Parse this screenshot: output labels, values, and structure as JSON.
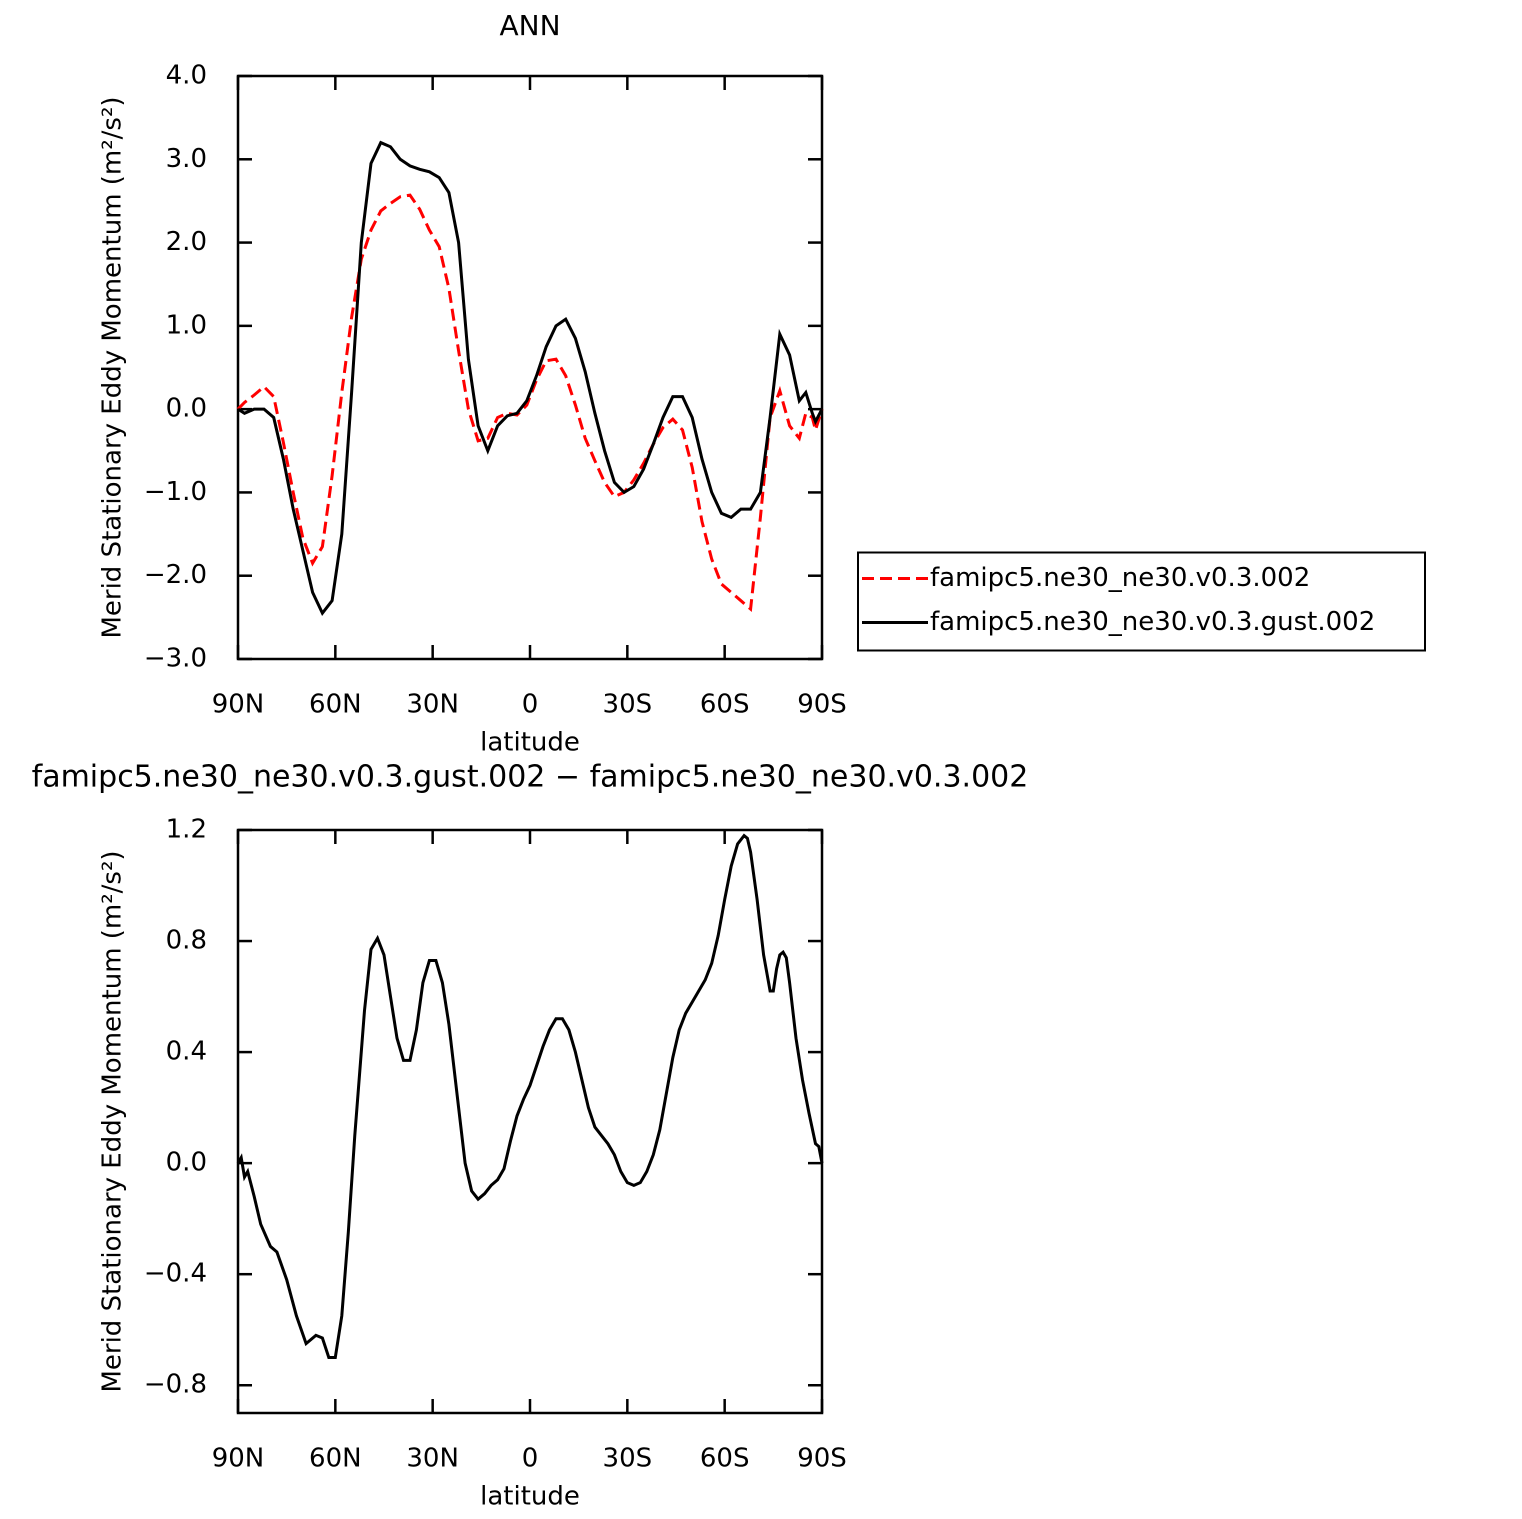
{
  "chart_data": [
    {
      "type": "line",
      "title": "ANN",
      "ylabel": "Merid Stationary Eddy Momentum (m²/s²)",
      "xlabel": "latitude",
      "xlim": [
        90,
        -90
      ],
      "xticks": [
        {
          "value": 90,
          "label": "90N"
        },
        {
          "value": 60,
          "label": "60N"
        },
        {
          "value": 30,
          "label": "30N"
        },
        0,
        {
          "value": -30,
          "label": "30S"
        },
        {
          "value": -60,
          "label": "60S"
        },
        {
          "value": -90,
          "label": "90S"
        }
      ],
      "ylim": [
        -3.0,
        4.0
      ],
      "yticks": [
        {
          "value": 4,
          "label": "4.0"
        },
        {
          "value": 3,
          "label": "3.0"
        },
        {
          "value": 2,
          "label": "2.0"
        },
        {
          "value": 1,
          "label": "1.0"
        },
        {
          "value": 0,
          "label": "0.0"
        },
        {
          "value": -1,
          "label": "−1.0"
        },
        {
          "value": -2,
          "label": "−2.0"
        },
        {
          "value": -3,
          "label": "−3.0"
        }
      ],
      "legend": "right",
      "x": [
        90,
        88,
        85,
        82,
        79,
        76,
        73,
        70,
        67,
        64,
        61,
        58,
        55,
        52,
        49,
        46,
        43,
        40,
        37,
        34,
        31,
        28,
        25,
        22,
        19,
        16,
        13,
        10,
        7,
        4,
        1,
        -2,
        -5,
        -8,
        -11,
        -14,
        -17,
        -20,
        -23,
        -26,
        -29,
        -32,
        -35,
        -38,
        -41,
        -44,
        -47,
        -50,
        -53,
        -56,
        -59,
        -62,
        -65,
        -68,
        -71,
        -74,
        -77,
        -80,
        -83,
        -85,
        -87,
        -88,
        -90
      ],
      "series": [
        {
          "name": "famipc5.ne30_ne30.v0.3.002",
          "color": "#ff0000",
          "style": "dashed",
          "values": [
            0.0,
            0.08,
            0.17,
            0.27,
            0.15,
            -0.4,
            -1.0,
            -1.55,
            -1.85,
            -1.65,
            -0.8,
            0.2,
            1.1,
            1.8,
            2.15,
            2.38,
            2.47,
            2.55,
            2.57,
            2.4,
            2.15,
            1.95,
            1.45,
            0.7,
            0.0,
            -0.38,
            -0.35,
            -0.1,
            -0.05,
            -0.07,
            0.05,
            0.35,
            0.58,
            0.6,
            0.4,
            0.05,
            -0.35,
            -0.62,
            -0.88,
            -1.05,
            -1.0,
            -0.85,
            -0.65,
            -0.42,
            -0.22,
            -0.12,
            -0.25,
            -0.7,
            -1.35,
            -1.8,
            -2.1,
            -2.2,
            -2.3,
            -2.4,
            -1.3,
            -0.1,
            0.22,
            -0.2,
            -0.35,
            -0.05,
            -0.1,
            -0.25,
            0.0
          ]
        },
        {
          "name": "famipc5.ne30_ne30.v0.3.gust.002",
          "color": "#000000",
          "style": "solid",
          "values": [
            0.0,
            -0.05,
            0.0,
            0.0,
            -0.1,
            -0.6,
            -1.2,
            -1.7,
            -2.2,
            -2.45,
            -2.3,
            -1.5,
            0.2,
            2.0,
            2.95,
            3.2,
            3.15,
            3.0,
            2.92,
            2.88,
            2.85,
            2.78,
            2.6,
            2.0,
            0.6,
            -0.2,
            -0.5,
            -0.2,
            -0.08,
            -0.05,
            0.1,
            0.4,
            0.75,
            1.0,
            1.08,
            0.85,
            0.45,
            -0.05,
            -0.5,
            -0.88,
            -1.0,
            -0.93,
            -0.72,
            -0.42,
            -0.1,
            0.15,
            0.15,
            -0.1,
            -0.6,
            -1.0,
            -1.25,
            -1.3,
            -1.2,
            -1.2,
            -1.0,
            -0.1,
            0.9,
            0.65,
            0.1,
            0.2,
            -0.05,
            -0.15,
            0.0
          ]
        }
      ]
    },
    {
      "type": "line",
      "title": "famipc5.ne30_ne30.v0.3.gust.002 − famipc5.ne30_ne30.v0.3.002",
      "ylabel": "Merid Stationary Eddy Momentum (m²/s²)",
      "xlabel": "latitude",
      "xlim": [
        90,
        -90
      ],
      "xticks": [
        {
          "value": 90,
          "label": "90N"
        },
        {
          "value": 60,
          "label": "60N"
        },
        {
          "value": 30,
          "label": "30N"
        },
        0,
        {
          "value": -30,
          "label": "30S"
        },
        {
          "value": -60,
          "label": "60S"
        },
        {
          "value": -90,
          "label": "90S"
        }
      ],
      "ylim": [
        -0.9,
        1.2
      ],
      "yticks": [
        {
          "value": 1.2,
          "label": "1.2"
        },
        {
          "value": 0.8,
          "label": "0.8"
        },
        {
          "value": 0.4,
          "label": "0.4"
        },
        {
          "value": 0,
          "label": "0.0"
        },
        {
          "value": -0.4,
          "label": "−0.4"
        },
        {
          "value": -0.8,
          "label": "−0.8"
        }
      ],
      "color": "#000000",
      "x": [
        90,
        89,
        88,
        87,
        85,
        83,
        80,
        78,
        75,
        72,
        69,
        66,
        64,
        62,
        60,
        58,
        56,
        54,
        51,
        49,
        47,
        45,
        43,
        41,
        39,
        37,
        35,
        33,
        31,
        29,
        27,
        25,
        22,
        20,
        18,
        16,
        14,
        12,
        10,
        8,
        6,
        4,
        2,
        0,
        -2,
        -4,
        -6,
        -8,
        -10,
        -12,
        -14,
        -16,
        -18,
        -20,
        -22,
        -24,
        -26,
        -28,
        -30,
        -32,
        -34,
        -36,
        -38,
        -40,
        -42,
        -44,
        -46,
        -48,
        -50,
        -52,
        -54,
        -56,
        -58,
        -60,
        -62,
        -64,
        -66,
        -67,
        -68,
        -70,
        -72,
        -74,
        -75,
        -76,
        -77,
        -78,
        -79,
        -80,
        -82,
        -84,
        -86,
        -88,
        -89,
        -90
      ],
      "values": [
        0.0,
        0.02,
        -0.05,
        -0.03,
        -0.12,
        -0.22,
        -0.3,
        -0.32,
        -0.42,
        -0.55,
        -0.65,
        -0.62,
        -0.63,
        -0.7,
        -0.7,
        -0.55,
        -0.25,
        0.1,
        0.55,
        0.77,
        0.81,
        0.75,
        0.6,
        0.45,
        0.37,
        0.37,
        0.48,
        0.65,
        0.73,
        0.73,
        0.65,
        0.5,
        0.2,
        0.0,
        -0.1,
        -0.13,
        -0.11,
        -0.08,
        -0.06,
        -0.02,
        0.08,
        0.17,
        0.23,
        0.28,
        0.35,
        0.42,
        0.48,
        0.52,
        0.52,
        0.48,
        0.4,
        0.3,
        0.2,
        0.13,
        0.1,
        0.07,
        0.03,
        -0.03,
        -0.07,
        -0.08,
        -0.07,
        -0.03,
        0.03,
        0.12,
        0.25,
        0.38,
        0.48,
        0.54,
        0.58,
        0.62,
        0.66,
        0.72,
        0.82,
        0.95,
        1.07,
        1.15,
        1.18,
        1.17,
        1.12,
        0.95,
        0.75,
        0.62,
        0.62,
        0.7,
        0.75,
        0.76,
        0.74,
        0.65,
        0.45,
        0.3,
        0.18,
        0.07,
        0.06,
        0.0
      ]
    }
  ]
}
